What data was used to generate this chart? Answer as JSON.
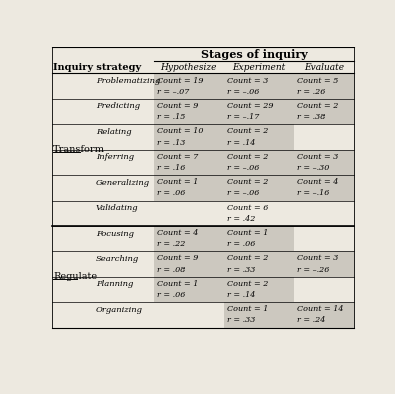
{
  "title": "Stages of inquiry",
  "col_headers": [
    "Hypothesize",
    "Experiment",
    "Evaluate"
  ],
  "row_groups": [
    {
      "group": "Transform",
      "rows": [
        {
          "strategy": "Problematizing",
          "cells": [
            {
              "line1": "Count = 19",
              "line2": "r = –.07"
            },
            {
              "line1": "Count = 3",
              "line2": "r = –.06"
            },
            {
              "line1": "Count = 5",
              "line2": "r = .26"
            }
          ],
          "shaded": [
            true,
            true,
            true
          ]
        },
        {
          "strategy": "Predicting",
          "cells": [
            {
              "line1": "Count = 9",
              "line2": "r = .15"
            },
            {
              "line1": "Count = 29",
              "line2": "r = –.17"
            },
            {
              "line1": "Count = 2",
              "line2": "r = .38"
            }
          ],
          "shaded": [
            true,
            true,
            true
          ]
        },
        {
          "strategy": "Relating",
          "cells": [
            {
              "line1": "Count = 10",
              "line2": "r = .13"
            },
            {
              "line1": "Count = 2",
              "line2": "r = .14"
            },
            {
              "line1": "",
              "line2": ""
            }
          ],
          "shaded": [
            true,
            true,
            false
          ]
        },
        {
          "strategy": "Inferring",
          "cells": [
            {
              "line1": "Count = 7",
              "line2": "r = .16"
            },
            {
              "line1": "Count = 2",
              "line2": "r = –.06"
            },
            {
              "line1": "Count = 3",
              "line2": "r = –.30"
            }
          ],
          "shaded": [
            true,
            true,
            true
          ]
        },
        {
          "strategy": "Generalizing",
          "cells": [
            {
              "line1": "Count = 1",
              "line2": "r = .06"
            },
            {
              "line1": "Count = 2",
              "line2": "r = –.06"
            },
            {
              "line1": "Count = 4",
              "line2": "r = –.16"
            }
          ],
          "shaded": [
            true,
            true,
            true
          ]
        },
        {
          "strategy": "Validating",
          "cells": [
            {
              "line1": "",
              "line2": ""
            },
            {
              "line1": "Count = 6",
              "line2": "r = .42"
            },
            {
              "line1": "",
              "line2": ""
            }
          ],
          "shaded": [
            false,
            false,
            false
          ]
        }
      ]
    },
    {
      "group": "Regulate",
      "rows": [
        {
          "strategy": "Focusing",
          "cells": [
            {
              "line1": "Count = 4",
              "line2": "r = .22"
            },
            {
              "line1": "Count = 1",
              "line2": "r = .06"
            },
            {
              "line1": "",
              "line2": ""
            }
          ],
          "shaded": [
            true,
            true,
            false
          ]
        },
        {
          "strategy": "Searching",
          "cells": [
            {
              "line1": "Count = 9",
              "line2": "r = .08"
            },
            {
              "line1": "Count = 2",
              "line2": "r = .33"
            },
            {
              "line1": "Count = 3",
              "line2": "r = –.26"
            }
          ],
          "shaded": [
            true,
            true,
            true
          ]
        },
        {
          "strategy": "Planning",
          "cells": [
            {
              "line1": "Count = 1",
              "line2": "r = .06"
            },
            {
              "line1": "Count = 2",
              "line2": "r = .14"
            },
            {
              "line1": "",
              "line2": ""
            }
          ],
          "shaded": [
            true,
            true,
            false
          ]
        },
        {
          "strategy": "Organizing",
          "cells": [
            {
              "line1": "",
              "line2": ""
            },
            {
              "line1": "Count = 1",
              "line2": "r = .33"
            },
            {
              "line1": "Count = 14",
              "line2": "r = .24"
            }
          ],
          "shaded": [
            false,
            true,
            true
          ]
        }
      ]
    }
  ],
  "bg_color": "#ede9e0",
  "shaded_color": "#ccc8bf",
  "font_size_title": 8,
  "font_size_header_label": 7,
  "font_size_col_header": 6.5,
  "font_size_group": 7,
  "font_size_strategy": 6,
  "font_size_cell": 5.8
}
